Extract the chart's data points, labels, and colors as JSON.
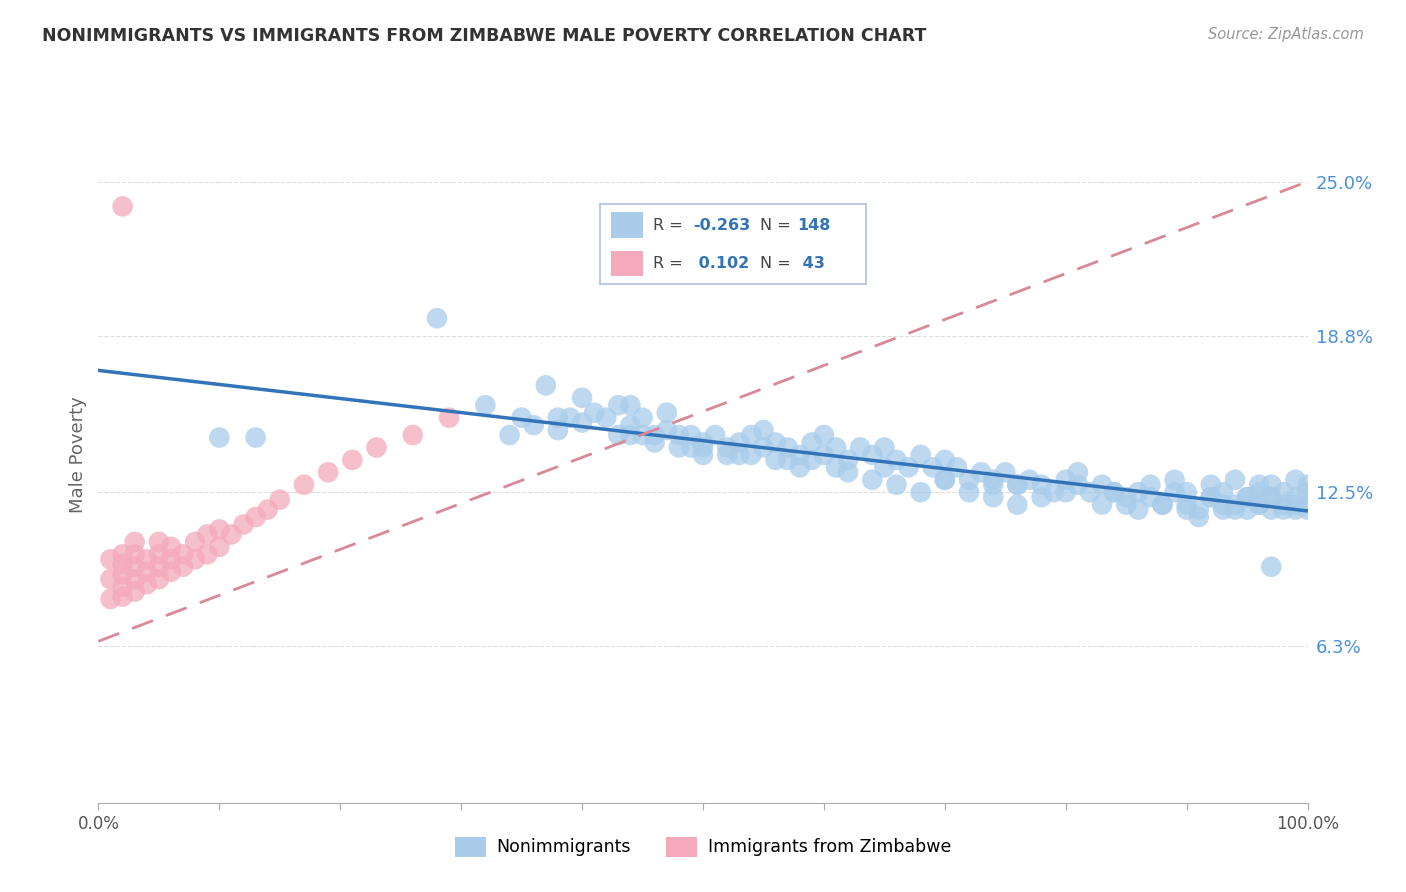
{
  "title": "NONIMMIGRANTS VS IMMIGRANTS FROM ZIMBABWE MALE POVERTY CORRELATION CHART",
  "source": "Source: ZipAtlas.com",
  "ylabel": "Male Poverty",
  "yticks": [
    "6.3%",
    "12.5%",
    "18.8%",
    "25.0%"
  ],
  "ytick_vals": [
    0.063,
    0.125,
    0.188,
    0.25
  ],
  "x_range": [
    0.0,
    1.0
  ],
  "y_range": [
    0.0,
    0.28
  ],
  "blue_color": "#A8CCEA",
  "pink_color": "#F4AABB",
  "trend_blue_color": "#3373B8",
  "trend_pink_color": "#D98898",
  "background_color": "#ffffff",
  "grid_color": "#dddddd",
  "nonimmigrant_x": [
    0.1,
    0.13,
    0.28,
    0.32,
    0.34,
    0.36,
    0.37,
    0.38,
    0.39,
    0.4,
    0.41,
    0.42,
    0.43,
    0.43,
    0.44,
    0.45,
    0.45,
    0.46,
    0.47,
    0.48,
    0.49,
    0.49,
    0.5,
    0.5,
    0.51,
    0.52,
    0.53,
    0.54,
    0.55,
    0.55,
    0.56,
    0.57,
    0.58,
    0.59,
    0.59,
    0.6,
    0.6,
    0.61,
    0.62,
    0.63,
    0.64,
    0.65,
    0.65,
    0.66,
    0.67,
    0.68,
    0.69,
    0.7,
    0.7,
    0.71,
    0.72,
    0.73,
    0.74,
    0.75,
    0.76,
    0.77,
    0.78,
    0.79,
    0.8,
    0.81,
    0.81,
    0.82,
    0.83,
    0.84,
    0.85,
    0.86,
    0.87,
    0.87,
    0.88,
    0.89,
    0.89,
    0.9,
    0.9,
    0.91,
    0.92,
    0.92,
    0.93,
    0.93,
    0.94,
    0.94,
    0.95,
    0.95,
    0.96,
    0.96,
    0.96,
    0.97,
    0.97,
    0.97,
    0.98,
    0.98,
    0.99,
    0.99,
    0.99,
    1.0,
    1.0,
    1.0,
    1.0,
    0.5,
    0.52,
    0.54,
    0.56,
    0.58,
    0.62,
    0.64,
    0.66,
    0.68,
    0.7,
    0.72,
    0.74,
    0.76,
    0.8,
    0.83,
    0.86,
    0.88,
    0.9,
    0.92,
    0.93,
    0.94,
    0.95,
    0.96,
    0.97,
    0.98,
    0.99,
    0.35,
    0.38,
    0.4,
    0.44,
    0.46,
    0.48,
    0.85,
    0.91,
    0.74,
    0.78,
    0.44,
    0.47,
    0.53,
    0.57,
    0.61,
    0.76,
    0.84,
    0.97
  ],
  "nonimmigrant_y": [
    0.147,
    0.147,
    0.195,
    0.16,
    0.148,
    0.152,
    0.168,
    0.155,
    0.155,
    0.163,
    0.157,
    0.155,
    0.16,
    0.148,
    0.152,
    0.148,
    0.155,
    0.148,
    0.15,
    0.148,
    0.148,
    0.143,
    0.145,
    0.14,
    0.148,
    0.143,
    0.14,
    0.148,
    0.15,
    0.143,
    0.145,
    0.143,
    0.14,
    0.138,
    0.145,
    0.148,
    0.14,
    0.143,
    0.138,
    0.143,
    0.14,
    0.143,
    0.135,
    0.138,
    0.135,
    0.14,
    0.135,
    0.138,
    0.13,
    0.135,
    0.13,
    0.133,
    0.13,
    0.133,
    0.128,
    0.13,
    0.128,
    0.125,
    0.13,
    0.128,
    0.133,
    0.125,
    0.128,
    0.125,
    0.123,
    0.125,
    0.123,
    0.128,
    0.12,
    0.125,
    0.13,
    0.12,
    0.125,
    0.118,
    0.123,
    0.128,
    0.118,
    0.125,
    0.12,
    0.13,
    0.118,
    0.123,
    0.125,
    0.12,
    0.128,
    0.118,
    0.123,
    0.128,
    0.12,
    0.125,
    0.118,
    0.123,
    0.13,
    0.118,
    0.12,
    0.125,
    0.128,
    0.143,
    0.14,
    0.14,
    0.138,
    0.135,
    0.133,
    0.13,
    0.128,
    0.125,
    0.13,
    0.125,
    0.123,
    0.12,
    0.125,
    0.12,
    0.118,
    0.12,
    0.118,
    0.123,
    0.12,
    0.118,
    0.123,
    0.12,
    0.123,
    0.118,
    0.12,
    0.155,
    0.15,
    0.153,
    0.148,
    0.145,
    0.143,
    0.12,
    0.115,
    0.128,
    0.123,
    0.16,
    0.157,
    0.145,
    0.138,
    0.135,
    0.128,
    0.125,
    0.095
  ],
  "immigrant_x": [
    0.01,
    0.01,
    0.01,
    0.02,
    0.02,
    0.02,
    0.02,
    0.02,
    0.03,
    0.03,
    0.03,
    0.03,
    0.03,
    0.04,
    0.04,
    0.04,
    0.05,
    0.05,
    0.05,
    0.05,
    0.06,
    0.06,
    0.06,
    0.07,
    0.07,
    0.08,
    0.08,
    0.09,
    0.09,
    0.1,
    0.1,
    0.11,
    0.12,
    0.13,
    0.14,
    0.15,
    0.17,
    0.19,
    0.21,
    0.23,
    0.26,
    0.29,
    0.02
  ],
  "immigrant_y": [
    0.082,
    0.09,
    0.098,
    0.083,
    0.087,
    0.092,
    0.096,
    0.1,
    0.085,
    0.09,
    0.095,
    0.1,
    0.105,
    0.088,
    0.093,
    0.098,
    0.09,
    0.095,
    0.1,
    0.105,
    0.093,
    0.098,
    0.103,
    0.095,
    0.1,
    0.098,
    0.105,
    0.1,
    0.108,
    0.103,
    0.11,
    0.108,
    0.112,
    0.115,
    0.118,
    0.122,
    0.128,
    0.133,
    0.138,
    0.143,
    0.148,
    0.155,
    0.24
  ]
}
